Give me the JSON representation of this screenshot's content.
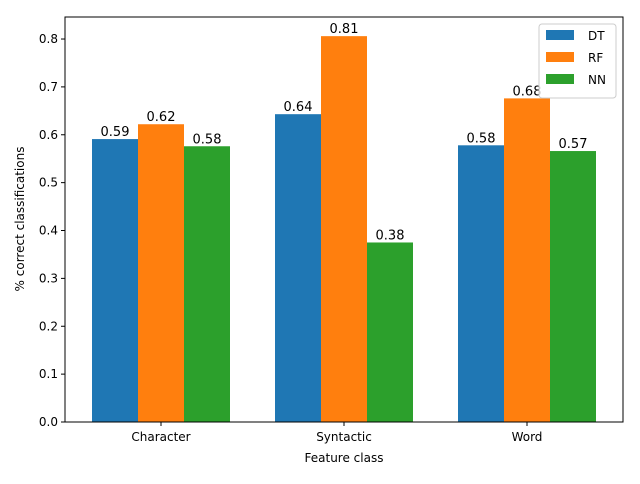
{
  "chart_data": {
    "type": "bar",
    "title": "",
    "xlabel": "Feature class",
    "ylabel": "% correct classifications",
    "categories": [
      "Character",
      "Syntactic",
      "Word"
    ],
    "series": [
      {
        "name": "DT",
        "color": "#1f77b4",
        "values": [
          0.591,
          0.643,
          0.578
        ],
        "labels": [
          "0.59",
          "0.64",
          "0.58"
        ]
      },
      {
        "name": "RF",
        "color": "#ff7f0e",
        "values": [
          0.622,
          0.806,
          0.676
        ],
        "labels": [
          "0.62",
          "0.81",
          "0.68"
        ]
      },
      {
        "name": "NN",
        "color": "#2ca02c",
        "values": [
          0.576,
          0.375,
          0.566
        ],
        "labels": [
          "0.58",
          "0.38",
          "0.57"
        ]
      }
    ],
    "yticks": [
      "0.0",
      "0.1",
      "0.2",
      "0.3",
      "0.4",
      "0.5",
      "0.6",
      "0.7",
      "0.8"
    ],
    "ylim": [
      0,
      0.846
    ],
    "grid": false,
    "legend": "top-right"
  }
}
